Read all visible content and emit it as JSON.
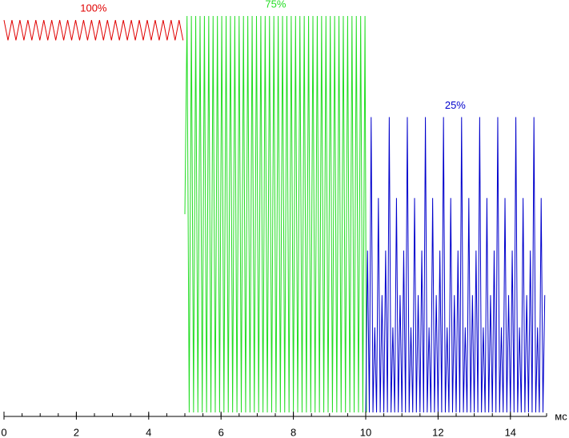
{
  "chart_data": {
    "type": "line",
    "x_label": "мс",
    "xlim": [
      0,
      15
    ],
    "xticks": [
      0,
      2,
      4,
      6,
      8,
      10,
      12,
      14
    ],
    "minor_xticks": [
      0,
      0.5,
      1,
      1.5,
      2,
      2.5,
      3,
      3.5,
      4,
      4.5,
      5,
      5.5,
      6,
      6.5,
      7,
      7.5,
      8,
      8.5,
      9,
      9.5,
      10,
      10.5,
      11,
      11.5,
      12,
      12.5,
      13,
      13.5,
      14,
      14.5,
      15
    ],
    "ylim": [
      0,
      100
    ],
    "series": [
      {
        "name": "100%",
        "color": "#e00000",
        "x": [
          0,
          0.11,
          0.22,
          0.33,
          0.44,
          0.55,
          0.66,
          0.77,
          0.88,
          0.99,
          1.1,
          1.21,
          1.32,
          1.43,
          1.54,
          1.65,
          1.76,
          1.87,
          1.98,
          2.09,
          2.2,
          2.31,
          2.42,
          2.53,
          2.64,
          2.75,
          2.86,
          2.97,
          3.08,
          3.19,
          3.3,
          3.41,
          3.52,
          3.63,
          3.74,
          3.85,
          3.96,
          4.07,
          4.18,
          4.29,
          4.4,
          4.51,
          4.62,
          4.73,
          4.84,
          4.95
        ],
        "values": [
          98,
          93,
          98,
          93,
          98,
          93,
          98,
          93,
          98,
          93,
          98,
          93,
          98,
          93,
          98,
          93,
          98,
          93,
          98,
          93,
          98,
          93,
          98,
          93,
          98,
          93,
          98,
          93,
          98,
          93,
          98,
          93,
          98,
          93,
          98,
          93,
          98,
          93,
          98,
          93,
          98,
          93,
          98,
          93,
          98,
          93
        ]
      },
      {
        "name": "75%",
        "color": "#22dd22",
        "x": [
          5,
          5.06,
          5.12,
          5.18,
          5.24,
          5.3,
          5.36,
          5.42,
          5.48,
          5.54,
          5.6,
          5.66,
          5.72,
          5.78,
          5.84,
          5.9,
          5.96,
          6.02,
          6.08,
          6.14,
          6.2,
          6.26,
          6.32,
          6.38,
          6.44,
          6.5,
          6.56,
          6.62,
          6.68,
          6.74,
          6.8,
          6.86,
          6.92,
          6.98,
          7.04,
          7.1,
          7.16,
          7.22,
          7.28,
          7.34,
          7.4,
          7.46,
          7.52,
          7.58,
          7.64,
          7.7,
          7.76,
          7.82,
          7.88,
          7.94,
          8,
          8.06,
          8.12,
          8.18,
          8.24,
          8.3,
          8.36,
          8.42,
          8.48,
          8.54,
          8.6,
          8.66,
          8.72,
          8.78,
          8.84,
          8.9,
          8.96,
          9.02,
          9.08,
          9.14,
          9.2,
          9.26,
          9.32,
          9.38,
          9.44,
          9.5,
          9.56,
          9.62,
          9.68,
          9.74,
          9.8,
          9.86,
          9.92,
          9.98,
          10.02
        ],
        "values": [
          50,
          99,
          1,
          99,
          1,
          99,
          1,
          99,
          1,
          99,
          1,
          99,
          1,
          99,
          1,
          99,
          1,
          99,
          1,
          99,
          1,
          99,
          1,
          99,
          1,
          99,
          1,
          99,
          1,
          99,
          1,
          99,
          1,
          99,
          1,
          99,
          1,
          99,
          1,
          99,
          1,
          99,
          1,
          99,
          1,
          99,
          1,
          99,
          1,
          99,
          1,
          99,
          1,
          99,
          1,
          99,
          1,
          99,
          1,
          99,
          1,
          99,
          1,
          99,
          1,
          99,
          1,
          99,
          1,
          99,
          1,
          99,
          1,
          99,
          1,
          99,
          1,
          99,
          1,
          99,
          1,
          99,
          1,
          99,
          1
        ]
      },
      {
        "name": "25%",
        "color": "#0000cc",
        "x": [
          10,
          10.05,
          10.1,
          10.15,
          10.2,
          10.25,
          10.3,
          10.35,
          10.4,
          10.45,
          10.5,
          10.55,
          10.6,
          10.65,
          10.7,
          10.75,
          10.8,
          10.85,
          10.9,
          10.95,
          11,
          11.05,
          11.1,
          11.15,
          11.2,
          11.25,
          11.3,
          11.35,
          11.4,
          11.45,
          11.5,
          11.55,
          11.6,
          11.65,
          11.7,
          11.75,
          11.8,
          11.85,
          11.9,
          11.95,
          12,
          12.05,
          12.1,
          12.15,
          12.2,
          12.25,
          12.3,
          12.35,
          12.4,
          12.45,
          12.5,
          12.55,
          12.6,
          12.65,
          12.7,
          12.75,
          12.8,
          12.85,
          12.9,
          12.95,
          13,
          13.05,
          13.1,
          13.15,
          13.2,
          13.25,
          13.3,
          13.35,
          13.4,
          13.45,
          13.5,
          13.55,
          13.6,
          13.65,
          13.7,
          13.75,
          13.8,
          13.85,
          13.9,
          13.95,
          14,
          14.05,
          14.1,
          14.15,
          14.2,
          14.25,
          14.3,
          14.35,
          14.4,
          14.45,
          14.5,
          14.55,
          14.6,
          14.65,
          14.7,
          14.75,
          14.8,
          14.85,
          14.9,
          14.95
        ],
        "values": [
          1,
          41,
          1,
          74,
          1,
          22,
          1,
          54,
          1,
          30,
          1,
          41,
          1,
          74,
          1,
          22,
          1,
          54,
          1,
          30,
          1,
          41,
          1,
          74,
          1,
          22,
          1,
          54,
          1,
          30,
          1,
          41,
          1,
          74,
          1,
          22,
          1,
          54,
          1,
          30,
          1,
          41,
          1,
          74,
          1,
          22,
          1,
          54,
          1,
          30,
          1,
          41,
          1,
          74,
          1,
          22,
          1,
          54,
          1,
          30,
          1,
          41,
          1,
          74,
          1,
          22,
          1,
          54,
          1,
          30,
          1,
          41,
          1,
          74,
          1,
          22,
          1,
          54,
          1,
          30,
          1,
          41,
          1,
          74,
          1,
          22,
          1,
          54,
          1,
          30,
          1,
          41,
          1,
          74,
          1,
          22,
          1,
          54,
          1,
          30
        ]
      }
    ]
  }
}
